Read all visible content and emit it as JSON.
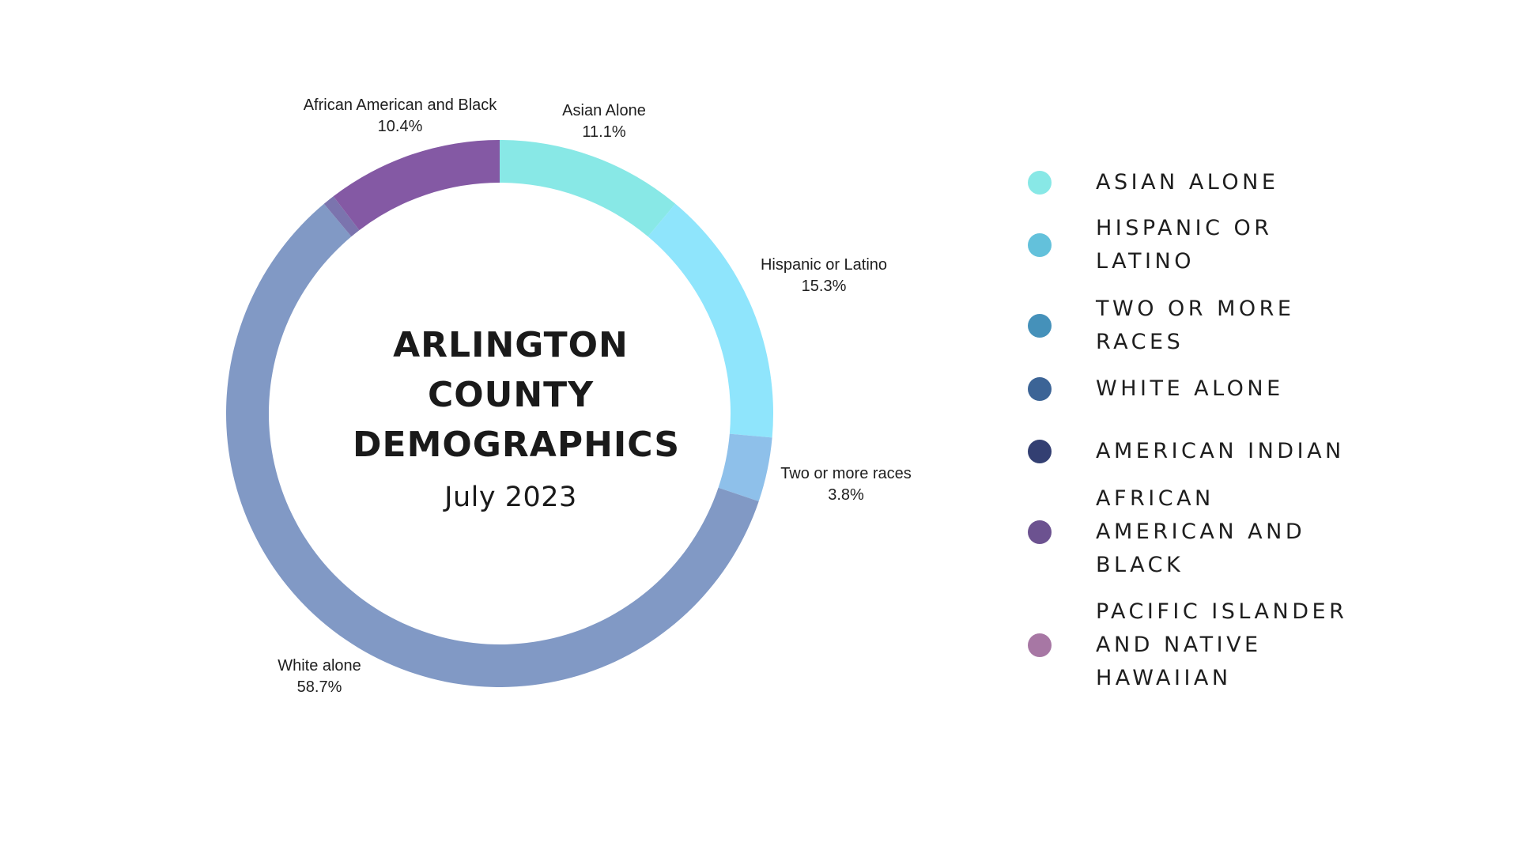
{
  "chart_data": {
    "type": "pie",
    "title": "ARLINGTON COUNTY DEMOGRAPHICS",
    "title_lines": [
      "ARLINGTON",
      "COUNTY",
      "DEMOGRAPHICS"
    ],
    "subtitle": "July 2023",
    "hole": "donut",
    "slices": [
      {
        "label": "Asian Alone",
        "value_label": "11.1%",
        "value": 11.1,
        "color": "#88E8E6"
      },
      {
        "label": "Hispanic or Latino",
        "value_label": "15.3%",
        "value": 15.3,
        "color": "#8FE5FC"
      },
      {
        "label": "Two or more races",
        "value_label": "3.8%",
        "value": 3.8,
        "color": "#8EC0EA"
      },
      {
        "label": "White alone",
        "value_label": "58.7%",
        "value": 58.7,
        "color": "#8199C5"
      },
      {
        "label": "",
        "value_label": "",
        "value": 0.7,
        "color": "#7B74AE"
      },
      {
        "label": "African American and Black",
        "value_label": "10.4%",
        "value": 10.4,
        "color": "#8459A4"
      }
    ],
    "legend": {
      "placement": "right",
      "items": [
        {
          "lines": [
            "ASIAN ALONE"
          ],
          "color": "#88E8E6"
        },
        {
          "lines": [
            "HISPANIC OR",
            "LATINO"
          ],
          "color": "#63C1DB"
        },
        {
          "lines": [
            "TWO OR MORE",
            "RACES"
          ],
          "color": "#4591BA"
        },
        {
          "lines": [
            "WHITE ALONE"
          ],
          "color": "#3C6496"
        },
        {
          "lines": [
            "AMERICAN INDIAN"
          ],
          "color": "#333F72"
        },
        {
          "lines": [
            "AFRICAN",
            "AMERICAN AND",
            "BLACK"
          ],
          "color": "#6C5290"
        },
        {
          "lines": [
            "PACIFIC ISLANDER",
            "AND NATIVE",
            "HAWAIIAN"
          ],
          "color": "#A777A4"
        }
      ]
    }
  }
}
